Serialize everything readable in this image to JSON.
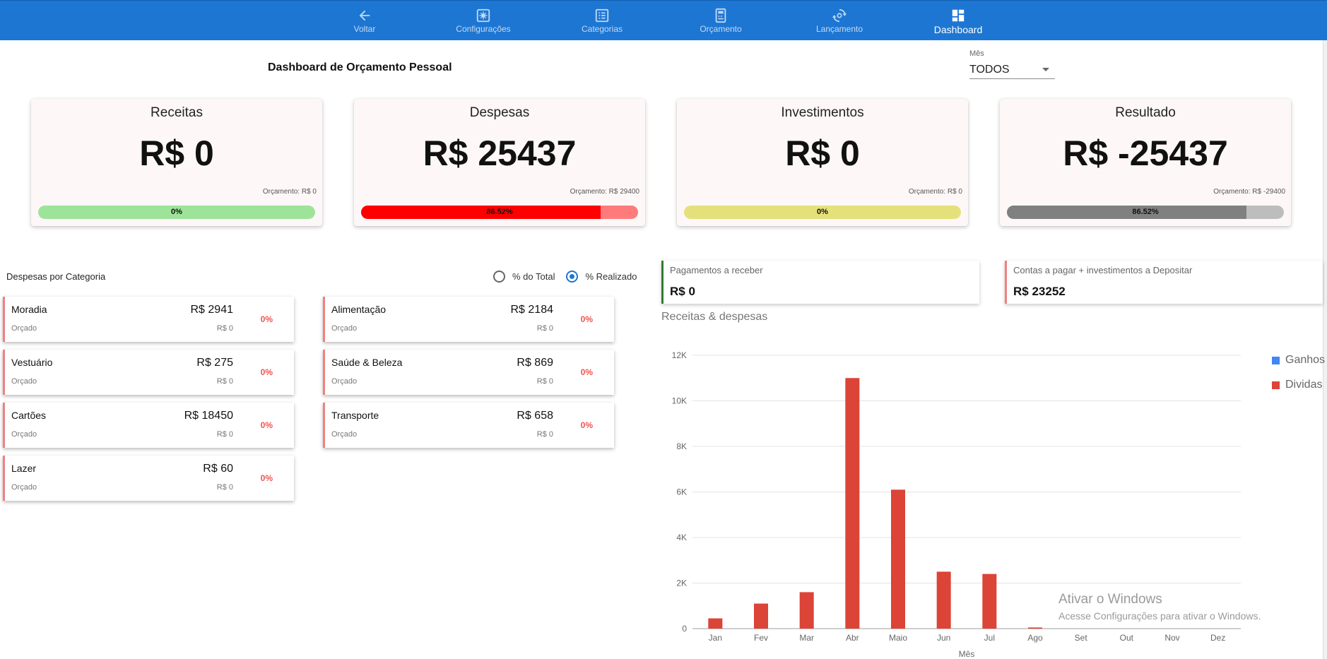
{
  "nav": {
    "items": [
      {
        "label": "Voltar",
        "icon": "arrow-left-icon"
      },
      {
        "label": "Configurações",
        "icon": "gear-icon"
      },
      {
        "label": "Categorias",
        "icon": "list-icon"
      },
      {
        "label": "Orçamento",
        "icon": "budget-icon"
      },
      {
        "label": "Lançamento",
        "icon": "sync-icon"
      },
      {
        "label": "Dashboard",
        "icon": "dashboard-icon"
      }
    ],
    "active": "Dashboard",
    "color": "#1e76d3"
  },
  "header": {
    "title": "Dashboard de Orçamento Pessoal",
    "month_label": "Mês",
    "month_value": "TODOS"
  },
  "summary": [
    {
      "title": "Receitas",
      "value": "R$ 0",
      "budget": "Orçamento: R$ 0",
      "percent_label": "0%",
      "percent": 0,
      "track_color": "#9ee39a",
      "fill_color": "#9ee39a"
    },
    {
      "title": "Despesas",
      "value": "R$ 25437",
      "budget": "Orçamento: R$ 29400",
      "percent_label": "86.52%",
      "percent": 86.52,
      "track_color": "#ff7b7b",
      "fill_color": "#ff0000"
    },
    {
      "title": "Investimentos",
      "value": "R$ 0",
      "budget": "Orçamento: R$ 0",
      "percent_label": "0%",
      "percent": 0,
      "track_color": "#e5e17a",
      "fill_color": "#e5e17a"
    },
    {
      "title": "Resultado",
      "value": "R$ -25437",
      "budget": "Orçamento: R$ -29400",
      "percent_label": "86.52%",
      "percent": 86.52,
      "track_color": "#bdbdbd",
      "fill_color": "#808080"
    }
  ],
  "categories_section": {
    "title": "Despesas por Categoria",
    "radio_total": "% do Total",
    "radio_realizado": "% Realizado",
    "selected": "% Realizado",
    "orcado_label": "Orçado",
    "left": [
      {
        "name": "Moradia",
        "amount": "R$ 2941",
        "orcado": "R$ 0",
        "pct": "0%"
      },
      {
        "name": "Vestuário",
        "amount": "R$ 275",
        "orcado": "R$ 0",
        "pct": "0%"
      },
      {
        "name": "Cartões",
        "amount": "R$ 18450",
        "orcado": "R$ 0",
        "pct": "0%"
      },
      {
        "name": "Lazer",
        "amount": "R$ 60",
        "orcado": "R$ 0",
        "pct": "0%"
      }
    ],
    "right": [
      {
        "name": "Alimentação",
        "amount": "R$ 2184",
        "orcado": "R$ 0",
        "pct": "0%"
      },
      {
        "name": "Saúde & Beleza",
        "amount": "R$ 869",
        "orcado": "R$ 0",
        "pct": "0%"
      },
      {
        "name": "Transporte",
        "amount": "R$ 658",
        "orcado": "R$ 0",
        "pct": "0%"
      }
    ]
  },
  "info": {
    "receber_label": "Pagamentos a receber",
    "receber_value": "R$ 0",
    "receber_color": "#2e7d32",
    "pagar_label": "Contas a pagar + investimentos a Depositar",
    "pagar_value": "R$ 23252",
    "pagar_color": "#f08080"
  },
  "chart_data": {
    "type": "bar",
    "title": "Receitas & despesas",
    "xlabel": "Mês",
    "ylabel": "",
    "categories": [
      "Jan",
      "Fev",
      "Mar",
      "Abr",
      "Maio",
      "Jun",
      "Jul",
      "Ago",
      "Set",
      "Out",
      "Nov",
      "Dez"
    ],
    "series": [
      {
        "name": "Ganhos",
        "color": "#4285f4",
        "values": [
          0,
          0,
          0,
          0,
          0,
          0,
          0,
          0,
          0,
          0,
          0,
          0
        ]
      },
      {
        "name": "Dividas",
        "color": "#db4437",
        "values": [
          450,
          1100,
          1600,
          11000,
          6100,
          2500,
          2400,
          50,
          0,
          0,
          0,
          0
        ]
      }
    ],
    "yticks": [
      "0",
      "2K",
      "4K",
      "6K",
      "8K",
      "10K",
      "12K"
    ],
    "ylim": [
      0,
      12000
    ],
    "grid": true,
    "legend": "right"
  },
  "watermark": {
    "line1": "Ativar o Windows",
    "line2": "Acesse Configurações para ativar o Windows."
  }
}
